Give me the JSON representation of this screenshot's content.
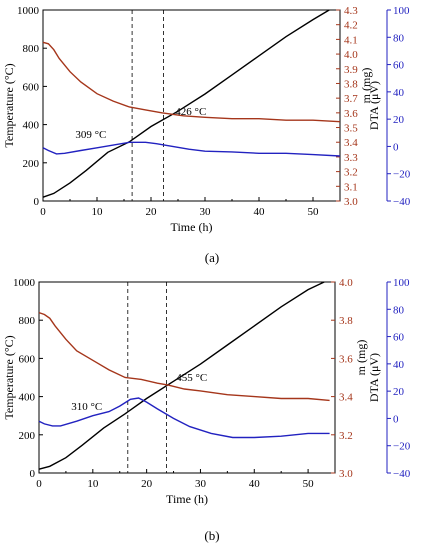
{
  "chart_data": [
    {
      "type": "line",
      "panel_label": "(a)",
      "xlabel": "Time (h)",
      "ylabel_left": "Temperature (°C)",
      "ylabel_mass": "m (mg)",
      "ylabel_dta": "DTA (μV)",
      "xlim": [
        0,
        55
      ],
      "ylim_temp": [
        0,
        1000
      ],
      "ylim_mass": [
        3.0,
        4.3
      ],
      "ylim_dta": [
        -40,
        100
      ],
      "x_ticks": [
        0,
        10,
        20,
        30,
        40,
        50
      ],
      "temp_ticks": [
        0,
        200,
        400,
        600,
        800,
        1000
      ],
      "mass_ticks": [
        3.0,
        3.1,
        3.2,
        3.3,
        3.4,
        3.5,
        3.6,
        3.7,
        3.8,
        3.9,
        4.0,
        4.1,
        4.2,
        4.3
      ],
      "dta_ticks": [
        -40,
        -20,
        0,
        20,
        40,
        60,
        80,
        100
      ],
      "vlines": [
        16.5,
        22.3
      ],
      "annotations": [
        {
          "text": "309 °C",
          "x": 6,
          "y_temp": 310
        },
        {
          "text": "426 °C",
          "x": 24.5,
          "y_temp": 430
        }
      ],
      "series": [
        {
          "axis": "temp",
          "color": "#000000",
          "x": [
            0,
            2,
            5,
            8,
            12,
            16,
            20,
            25,
            30,
            35,
            40,
            45,
            50,
            53
          ],
          "y": [
            20,
            40,
            95,
            160,
            255,
            310,
            390,
            470,
            560,
            660,
            760,
            860,
            950,
            1000
          ]
        },
        {
          "axis": "mass",
          "color": "#a5361b",
          "x": [
            0,
            1,
            2,
            3,
            5,
            7,
            10,
            13,
            16,
            19,
            22,
            26,
            30,
            35,
            40,
            45,
            50,
            55
          ],
          "y": [
            4.08,
            4.07,
            4.03,
            3.97,
            3.88,
            3.81,
            3.73,
            3.68,
            3.64,
            3.62,
            3.6,
            3.58,
            3.57,
            3.56,
            3.56,
            3.55,
            3.55,
            3.54
          ]
        },
        {
          "axis": "dta",
          "color": "#2222c0",
          "x": [
            0,
            1,
            2.5,
            4,
            7,
            10,
            13,
            16,
            19,
            21,
            24,
            27,
            30,
            35,
            40,
            45,
            50,
            55
          ],
          "y": [
            -1,
            -3,
            -5.5,
            -5,
            -3,
            -1,
            1,
            3,
            3,
            2,
            0,
            -2,
            -3.5,
            -4,
            -5,
            -5,
            -6,
            -7
          ]
        }
      ]
    },
    {
      "type": "line",
      "panel_label": "(b)",
      "xlabel": "Time (h)",
      "ylabel_left": "Temperature (°C)",
      "ylabel_mass": "m (mg)",
      "ylabel_dta": "DTA (μV)",
      "xlim": [
        0,
        55
      ],
      "ylim_temp": [
        0,
        1000
      ],
      "ylim_mass": [
        3.0,
        4.0
      ],
      "ylim_dta": [
        -40,
        100
      ],
      "x_ticks": [
        0,
        10,
        20,
        30,
        40,
        50
      ],
      "temp_ticks": [
        0,
        200,
        400,
        600,
        800,
        1000
      ],
      "mass_ticks": [
        3.0,
        3.2,
        3.4,
        3.6,
        3.8,
        4.0
      ],
      "dta_ticks": [
        -40,
        -20,
        0,
        20,
        40,
        60,
        80,
        100
      ],
      "vlines": [
        16.5,
        23.7
      ],
      "annotations": [
        {
          "text": "310 °C",
          "x": 6,
          "y_temp": 310
        },
        {
          "text": "455 °C",
          "x": 25.5,
          "y_temp": 460
        }
      ],
      "series": [
        {
          "axis": "temp",
          "color": "#000000",
          "x": [
            0,
            2,
            5,
            8,
            12,
            16,
            20,
            25,
            30,
            35,
            40,
            45,
            50,
            53
          ],
          "y": [
            20,
            35,
            80,
            145,
            235,
            310,
            390,
            480,
            570,
            670,
            770,
            870,
            960,
            1000
          ]
        },
        {
          "axis": "mass",
          "color": "#a5361b",
          "x": [
            0,
            1,
            2,
            3,
            5,
            7,
            10,
            13,
            16,
            19,
            22,
            24,
            27,
            30,
            35,
            40,
            45,
            50,
            54
          ],
          "y": [
            3.84,
            3.83,
            3.81,
            3.77,
            3.7,
            3.64,
            3.59,
            3.54,
            3.5,
            3.49,
            3.47,
            3.46,
            3.44,
            3.43,
            3.41,
            3.4,
            3.39,
            3.39,
            3.38
          ]
        },
        {
          "axis": "dta",
          "color": "#2222c0",
          "x": [
            0,
            1,
            2.5,
            4,
            7,
            10,
            13,
            15,
            17,
            18.5,
            20,
            22,
            25,
            28,
            32,
            36,
            40,
            45,
            50,
            54
          ],
          "y": [
            -2,
            -4,
            -5.5,
            -5.5,
            -2,
            2,
            5,
            9,
            14,
            15,
            12,
            7,
            0,
            -6,
            -11,
            -14,
            -14,
            -13,
            -11,
            -11
          ]
        }
      ]
    }
  ]
}
